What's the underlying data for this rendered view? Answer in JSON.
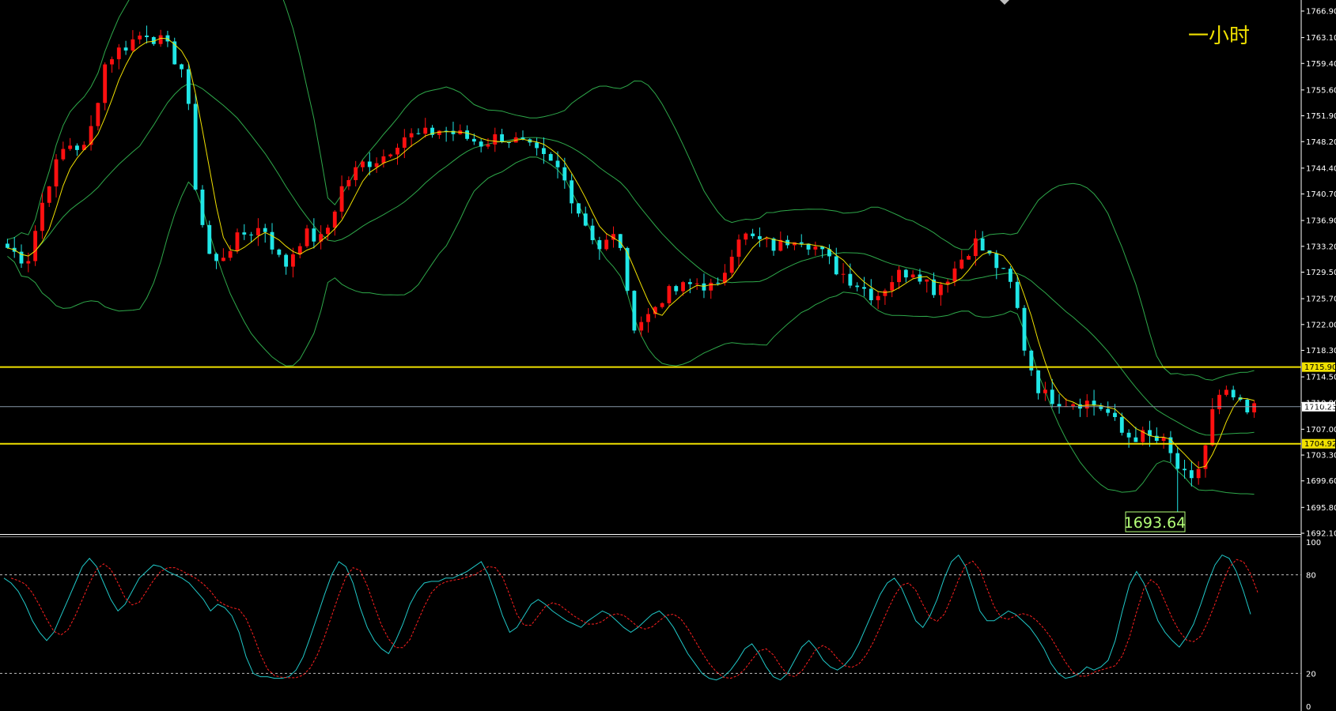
{
  "period_label": "一小时",
  "colors": {
    "background": "#000000",
    "up_candle": "#ff1010",
    "down_candle": "#20e6e6",
    "bollinger": "#2ea84a",
    "ma_line": "#f0e000",
    "stoch_k": "#20c8c8",
    "stoch_d": "#ff2020",
    "support_line": "#f0e000",
    "current_line": "#8898a8",
    "axis_text": "#ffffff",
    "low_label": "#b4ff78"
  },
  "chart_data": [
    {
      "type": "candlestick",
      "title": "",
      "y_ticks": [
        "1766.90",
        "1763.10",
        "1759.40",
        "1755.60",
        "1751.90",
        "1748.20",
        "1744.40",
        "1740.70",
        "1736.90",
        "1733.20",
        "1729.50",
        "1725.70",
        "1722.00",
        "1718.30",
        "1714.50",
        "1710.80",
        "1707.00",
        "1703.30",
        "1699.60",
        "1695.80",
        "1692.10"
      ],
      "ylim": [
        1692.1,
        1768.0
      ],
      "horizontal_lines": [
        {
          "value": 1715.9,
          "label": "1715.90",
          "style": "support"
        },
        {
          "value": 1704.92,
          "label": "1704.92",
          "style": "support"
        },
        {
          "value": 1710.23,
          "label": "1710.23",
          "style": "current"
        }
      ],
      "low_annotation": {
        "value": 1693.64,
        "label": "1693.64"
      },
      "indicators": [
        "Bollinger Bands",
        "Moving Average"
      ],
      "approx_bars": 180
    },
    {
      "type": "line",
      "title": "",
      "ylim": [
        0,
        100
      ],
      "y_ticks": [
        "100",
        "80",
        "20",
        "0"
      ],
      "reference_lines": [
        80,
        20
      ],
      "series": [
        {
          "values": [
            78,
            75,
            70,
            62,
            52,
            45,
            40,
            45,
            55,
            65,
            75,
            85,
            90,
            85,
            75,
            65,
            58,
            62,
            70,
            78,
            82,
            86,
            85,
            82,
            80,
            78,
            75,
            70,
            65,
            58,
            62,
            60,
            55,
            45,
            30,
            20,
            18,
            18,
            17,
            17,
            18,
            22,
            30,
            42,
            55,
            68,
            80,
            88,
            85,
            75,
            60,
            48,
            40,
            35,
            32,
            40,
            50,
            62,
            70,
            75,
            76,
            76,
            78,
            78,
            80,
            82,
            85,
            88,
            80,
            68,
            55,
            45,
            48,
            55,
            62,
            65,
            62,
            58,
            55,
            52,
            50,
            48,
            52,
            55,
            58,
            56,
            52,
            48,
            45,
            48,
            52,
            56,
            58,
            54,
            48,
            40,
            32,
            26,
            20,
            17,
            16,
            18,
            22,
            28,
            35,
            38,
            32,
            24,
            18,
            16,
            20,
            28,
            36,
            40,
            35,
            28,
            24,
            22,
            25,
            30,
            38,
            48,
            58,
            68,
            75,
            78,
            72,
            62,
            52,
            48,
            55,
            65,
            78,
            88,
            92,
            85,
            72,
            58,
            52,
            52,
            55,
            58,
            56,
            52,
            48,
            42,
            35,
            26,
            20,
            17,
            18,
            20,
            24,
            22,
            24,
            28,
            40,
            58,
            74,
            82,
            75,
            64,
            52,
            45,
            40,
            36,
            42,
            50,
            62,
            75,
            86,
            92,
            90,
            82,
            70,
            56
          ]
        }
      ]
    }
  ]
}
